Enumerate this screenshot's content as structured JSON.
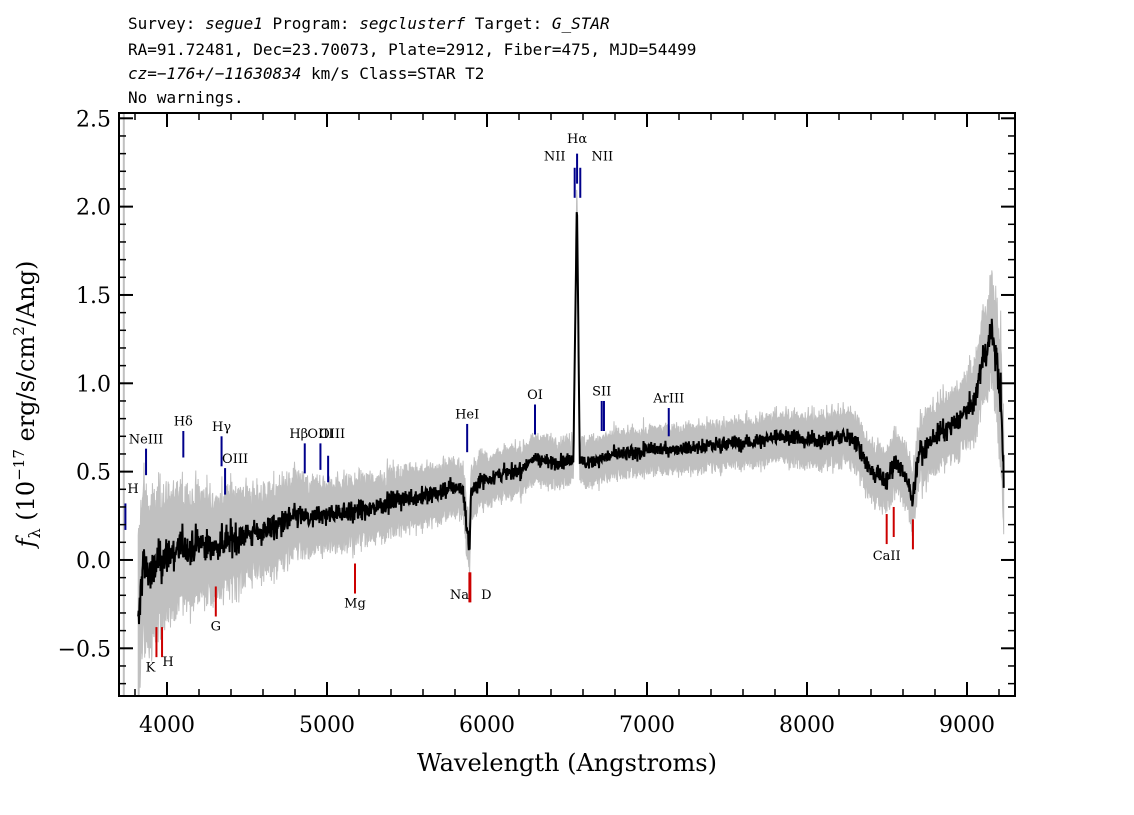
{
  "header": {
    "line1": [
      {
        "t": "Survey: ",
        "i": false
      },
      {
        "t": "segue1",
        "i": true
      },
      {
        "t": " Program: ",
        "i": false
      },
      {
        "t": "segclusterf",
        "i": true
      },
      {
        "t": " Target: ",
        "i": false
      },
      {
        "t": "G_STAR",
        "i": true
      }
    ],
    "line2": "RA=91.72481, Dec=23.70073, Plate=2912, Fiber=475, MJD=54499",
    "line3": [
      {
        "t": "cz=",
        "i": true
      },
      {
        "t": "−176+/−11630834",
        "i": true
      },
      {
        "t": " km/s Class=STAR T2",
        "i": false
      }
    ],
    "line4": "No warnings."
  },
  "chart_data": {
    "type": "line",
    "xlabel": "Wavelength (Angstroms)",
    "ylabel_parts": [
      "f",
      "λ",
      " (10",
      "−17",
      " erg/s/cm",
      "2",
      "/Ang)"
    ],
    "xlim": [
      3700,
      9300
    ],
    "ylim": [
      -0.77,
      2.53
    ],
    "x_ticks": [
      4000,
      5000,
      6000,
      7000,
      8000,
      9000
    ],
    "x_tick_labels": [
      "4000",
      "5000",
      "6000",
      "7000",
      "8000",
      "9000"
    ],
    "y_ticks": [
      -0.5,
      0.0,
      0.5,
      1.0,
      1.5,
      2.0,
      2.5
    ],
    "y_tick_labels": [
      "−0.5",
      "0.0",
      "0.5",
      "1.0",
      "1.5",
      "2.0",
      "2.5"
    ],
    "colors": {
      "flux": "#000000",
      "error": "#c0c0c0",
      "emission": "#00008b",
      "absorption": "#cc0000"
    },
    "series": [
      {
        "role": "flux",
        "x": [
          3820,
          3850,
          3900,
          3950,
          4000,
          4050,
          4100,
          4150,
          4200,
          4250,
          4300,
          4350,
          4400,
          4450,
          4500,
          4550,
          4600,
          4650,
          4700,
          4750,
          4800,
          4850,
          4900,
          4950,
          5000,
          5100,
          5200,
          5300,
          5400,
          5500,
          5600,
          5700,
          5800,
          5850,
          5890,
          5900,
          5950,
          6000,
          6100,
          6200,
          6300,
          6400,
          6500,
          6540,
          6562,
          6580,
          6650,
          6700,
          6800,
          6900,
          7000,
          7100,
          7200,
          7300,
          7400,
          7500,
          7600,
          7700,
          7800,
          7900,
          8000,
          8100,
          8200,
          8300,
          8400,
          8500,
          8550,
          8600,
          8662,
          8700,
          8800,
          8900,
          9000,
          9050,
          9100,
          9130,
          9150,
          9180,
          9210,
          9230
        ],
        "y": [
          -0.4,
          0.0,
          -0.1,
          0.0,
          0.02,
          0.05,
          0.08,
          0.05,
          0.1,
          0.08,
          0.07,
          0.1,
          0.12,
          0.14,
          0.15,
          0.14,
          0.17,
          0.18,
          0.2,
          0.22,
          0.25,
          0.25,
          0.22,
          0.26,
          0.25,
          0.28,
          0.27,
          0.3,
          0.33,
          0.35,
          0.36,
          0.38,
          0.42,
          0.4,
          0.05,
          0.38,
          0.45,
          0.46,
          0.49,
          0.5,
          0.58,
          0.55,
          0.56,
          0.57,
          2.05,
          0.55,
          0.56,
          0.57,
          0.6,
          0.6,
          0.62,
          0.63,
          0.63,
          0.64,
          0.65,
          0.66,
          0.66,
          0.67,
          0.7,
          0.7,
          0.68,
          0.68,
          0.7,
          0.68,
          0.5,
          0.45,
          0.55,
          0.5,
          0.35,
          0.6,
          0.7,
          0.75,
          0.85,
          0.9,
          1.15,
          1.2,
          1.3,
          1.15,
          0.95,
          0.45
        ]
      },
      {
        "role": "error",
        "x": [
          3820,
          3900,
          4000,
          4200,
          4500,
          5000,
          5500,
          6000,
          6500,
          7000,
          7500,
          8000,
          8500,
          9000,
          9100,
          9200
        ],
        "y": [
          0.35,
          0.3,
          0.26,
          0.22,
          0.18,
          0.14,
          0.12,
          0.1,
          0.09,
          0.09,
          0.09,
          0.1,
          0.12,
          0.14,
          0.18,
          0.25
        ]
      }
    ],
    "emission_lines": [
      {
        "label": "H",
        "x": 3740
      },
      {
        "label": "NeIII",
        "x": 3869
      },
      {
        "label": "Hδ",
        "x": 4102
      },
      {
        "label": "Hγ",
        "x": 4341
      },
      {
        "label": "OIII",
        "x": 4363
      },
      {
        "label": "Hβ",
        "x": 4861
      },
      {
        "label": "OIII",
        "x": 4959
      },
      {
        "label": "OIII",
        "x": 5007
      },
      {
        "label": "HeI",
        "x": 5876
      },
      {
        "label": "OI",
        "x": 6300
      },
      {
        "label": "NII",
        "x": 6548
      },
      {
        "label": "Hα",
        "x": 6563
      },
      {
        "label": "NII",
        "x": 6583
      },
      {
        "label": "SII",
        "x": 6717
      },
      {
        "label": "SII",
        "x": 6731
      },
      {
        "label": "ArIII",
        "x": 7136
      }
    ],
    "absorption_lines": [
      {
        "label": "K",
        "x": 3934
      },
      {
        "label": "H",
        "x": 3969
      },
      {
        "label": "G",
        "x": 4305
      },
      {
        "label": "Mg",
        "x": 5175
      },
      {
        "label": "Na",
        "x": 5890
      },
      {
        "label": "D",
        "x": 5896
      },
      {
        "label": "CaII",
        "x": 8498
      },
      {
        "label": "CaII",
        "x": 8542
      },
      {
        "label": "CaII",
        "x": 8662
      }
    ]
  }
}
